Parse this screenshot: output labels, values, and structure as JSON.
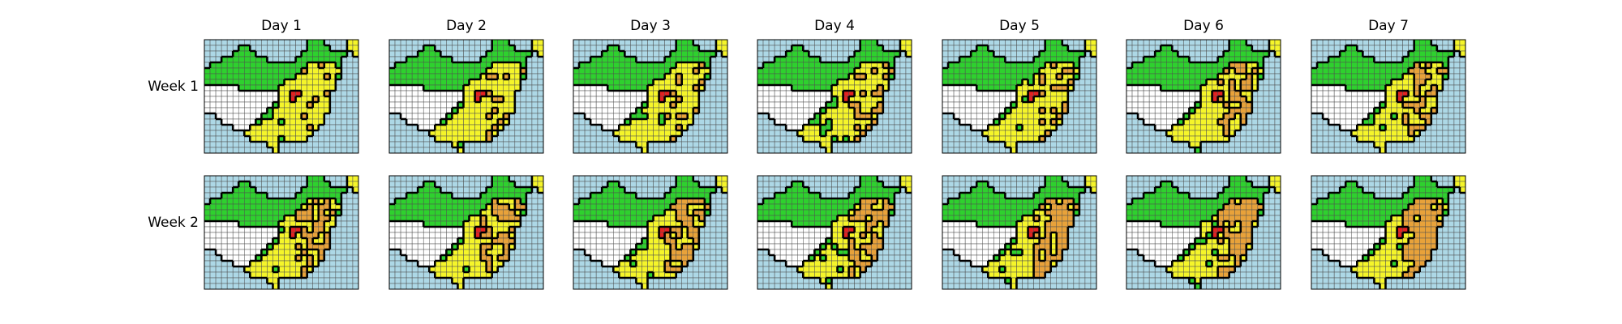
{
  "chart_data": {
    "type": "heatmap",
    "title": "",
    "column_titles": [
      "Day 1",
      "Day 2",
      "Day 3",
      "Day 4",
      "Day 5",
      "Day 6",
      "Day 7"
    ],
    "row_titles": [
      "Week 1",
      "Week 2"
    ],
    "grid_size": {
      "rows": 20,
      "cols": 27
    },
    "colors": {
      "background": "#add8e6",
      "gridline": "#505050",
      "none": "#ffffff",
      "low": "#2ed12e",
      "medium": "#f5f52a",
      "high": "#e8a23a",
      "very_high": "#e22222",
      "border": "#000000"
    },
    "legend": "none",
    "axes": "off"
  }
}
